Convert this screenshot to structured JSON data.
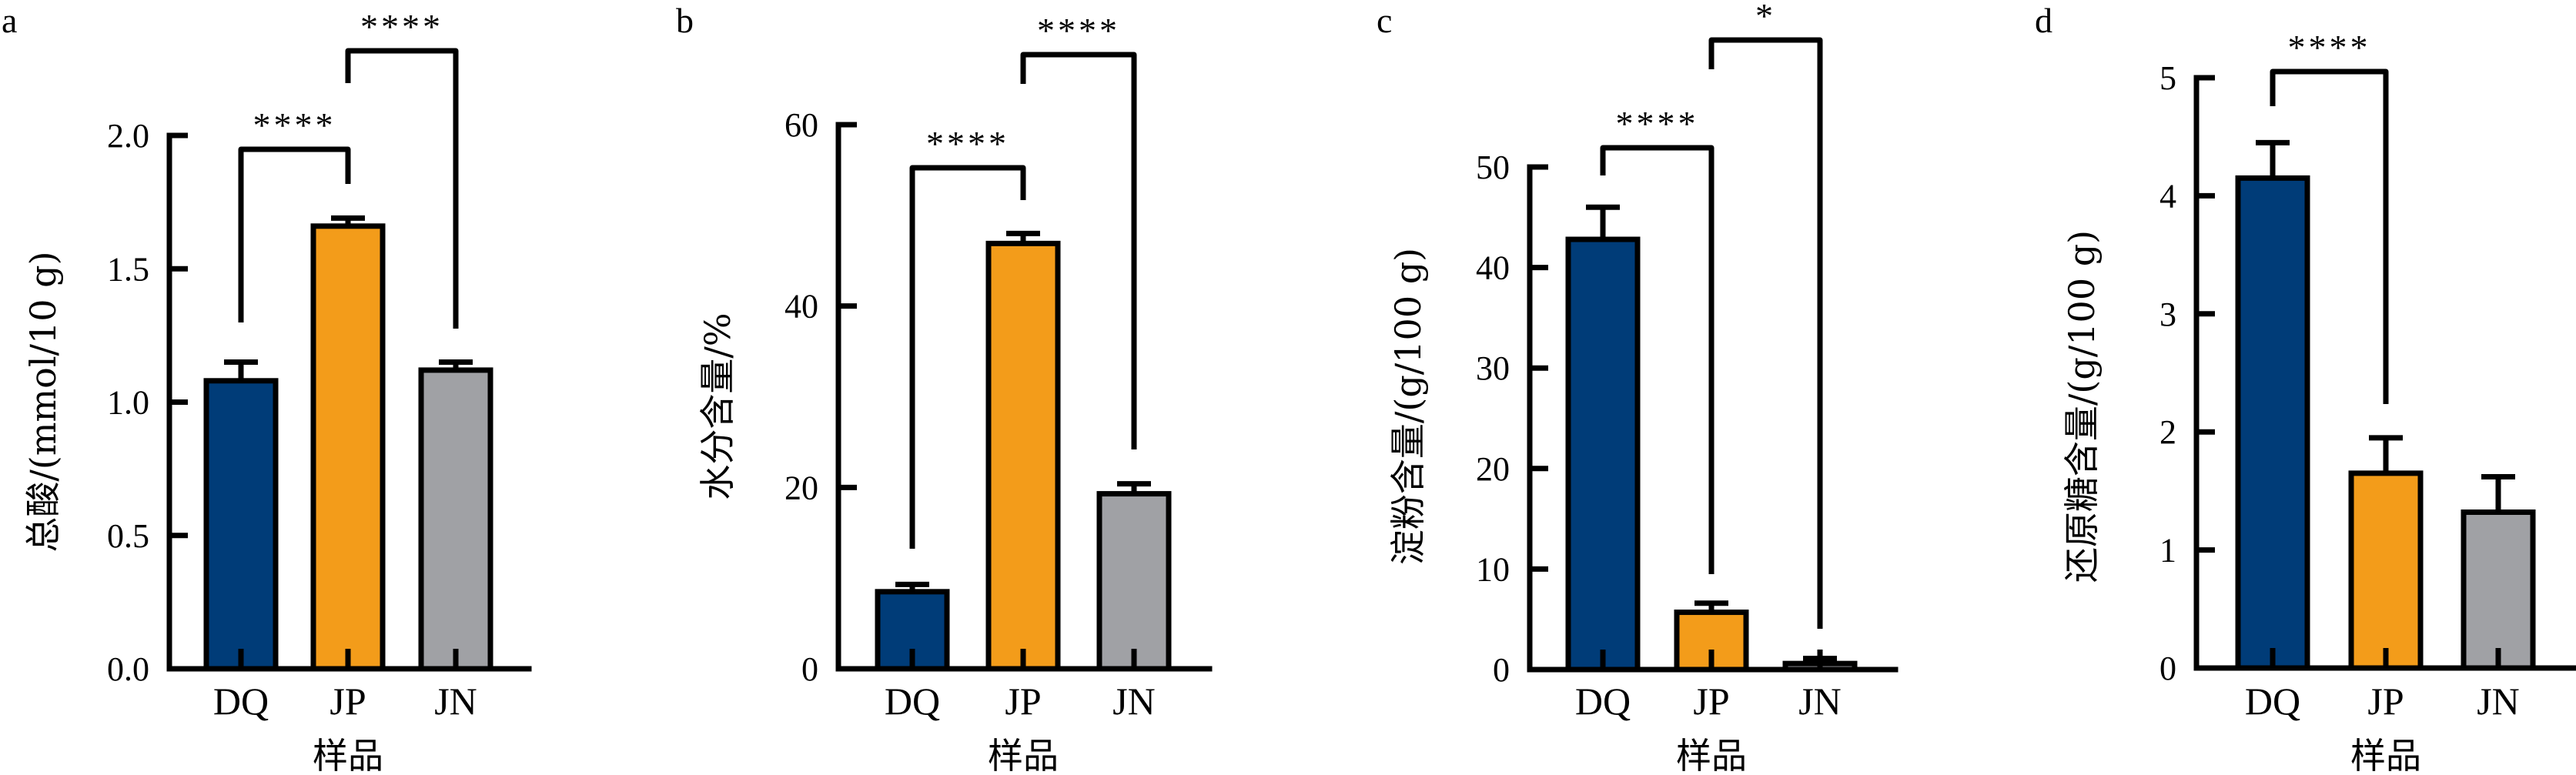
{
  "colors": {
    "DQ": "#003c78",
    "JP": "#f39c1a",
    "JN": "#a0a1a5",
    "ink": "#000000"
  },
  "chart_data": [
    {
      "panel": "a",
      "type": "bar",
      "title": "",
      "categories": [
        "DQ",
        "JP",
        "JN"
      ],
      "values": [
        1.08,
        1.66,
        1.12
      ],
      "errors": [
        0.07,
        0.03,
        0.03
      ],
      "xlabel": "样品",
      "ylabel": "总酸/(mmol/10 g)",
      "ylim": [
        0,
        2.0
      ],
      "yticks": [
        0,
        0.5,
        1.0,
        1.5,
        2.0
      ],
      "ytick_labels": [
        "0.0",
        "0.5",
        "1.0",
        "1.5",
        "2.0"
      ],
      "grid": false,
      "significance": [
        {
          "from": "DQ",
          "to": "JP",
          "label": "****"
        },
        {
          "from": "JP",
          "to": "JN",
          "label": "****"
        }
      ]
    },
    {
      "panel": "b",
      "type": "bar",
      "title": "",
      "categories": [
        "DQ",
        "JP",
        "JN"
      ],
      "values": [
        8.5,
        46.9,
        19.3
      ],
      "errors": [
        0.8,
        1.1,
        1.1
      ],
      "xlabel": "样品",
      "ylabel": "水分含量/%",
      "ylim": [
        0,
        60
      ],
      "yticks": [
        0,
        20,
        40,
        60
      ],
      "ytick_labels": [
        "0",
        "20",
        "40",
        "60"
      ],
      "grid": false,
      "significance": [
        {
          "from": "DQ",
          "to": "JP",
          "label": "****"
        },
        {
          "from": "JP",
          "to": "JN",
          "label": "****"
        }
      ]
    },
    {
      "panel": "c",
      "type": "bar",
      "title": "",
      "categories": [
        "DQ",
        "JP",
        "JN"
      ],
      "values": [
        42.8,
        5.7,
        0.6
      ],
      "errors": [
        3.2,
        0.9,
        0.5
      ],
      "xlabel": "样品",
      "ylabel": "淀粉含量/(g/100 g)",
      "ylim": [
        0,
        50
      ],
      "yticks": [
        0,
        10,
        20,
        30,
        40,
        50
      ],
      "ytick_labels": [
        "0",
        "10",
        "20",
        "30",
        "40",
        "50"
      ],
      "grid": false,
      "significance": [
        {
          "from": "DQ",
          "to": "JP",
          "label": "****"
        },
        {
          "from": "JP",
          "to": "JN",
          "label": "*"
        }
      ]
    },
    {
      "panel": "d",
      "type": "bar",
      "title": "",
      "categories": [
        "DQ",
        "JP",
        "JN"
      ],
      "values": [
        4.15,
        1.65,
        1.32
      ],
      "errors": [
        0.3,
        0.3,
        0.3
      ],
      "xlabel": "样品",
      "ylabel": "还原糖含量/(g/100 g)",
      "ylim": [
        0,
        5
      ],
      "yticks": [
        0,
        1,
        2,
        3,
        4,
        5
      ],
      "ytick_labels": [
        "0",
        "1",
        "2",
        "3",
        "4",
        "5"
      ],
      "grid": false,
      "significance": [
        {
          "from": "DQ",
          "to": "JP",
          "label": "****"
        }
      ]
    }
  ]
}
